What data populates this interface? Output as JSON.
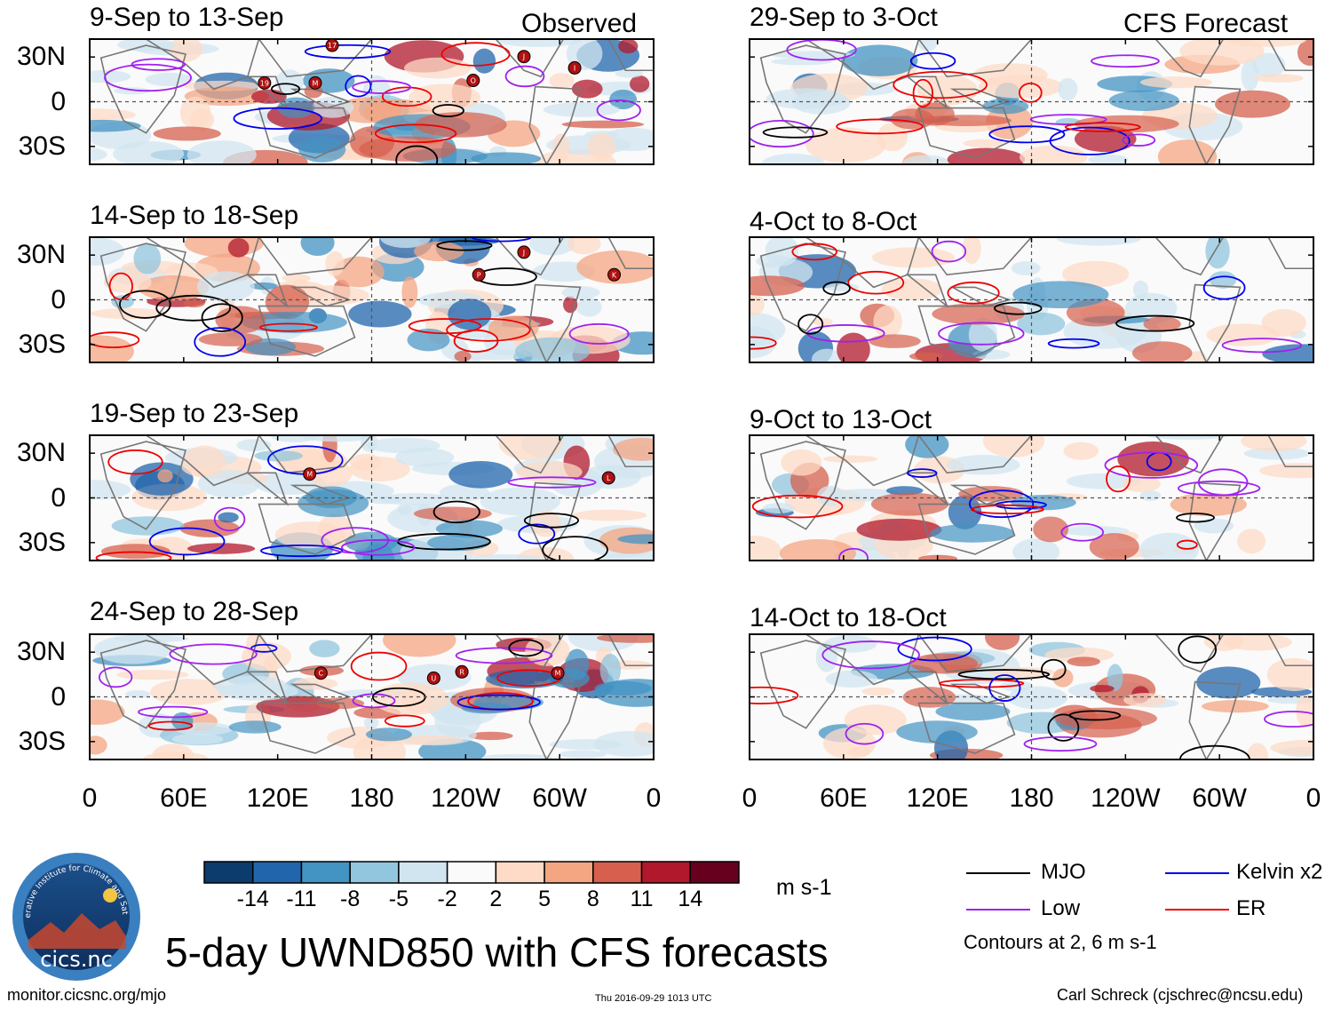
{
  "title": "5-day UWND850 with CFS forecasts",
  "left_column_label": "Observed",
  "right_column_label": "CFS Forecast",
  "panels_left": [
    {
      "title": "9-Sep to 13-Sep",
      "storms": [
        "17",
        "19",
        "M",
        "O",
        "J",
        "I"
      ]
    },
    {
      "title": "14-Sep to 18-Sep",
      "storms": [
        "J",
        "P",
        "K"
      ]
    },
    {
      "title": "19-Sep to 23-Sep",
      "storms": [
        "M",
        "L"
      ]
    },
    {
      "title": "24-Sep to 28-Sep",
      "storms": [
        "C",
        "U",
        "R",
        "M"
      ]
    }
  ],
  "panels_right": [
    {
      "title": "29-Sep to 3-Oct"
    },
    {
      "title": "4-Oct to 8-Oct"
    },
    {
      "title": "9-Oct to 13-Oct"
    },
    {
      "title": "14-Oct to 18-Oct"
    }
  ],
  "lat_labels": [
    "30N",
    "0",
    "30S"
  ],
  "lon_labels": [
    "0",
    "60E",
    "120E",
    "180",
    "120W",
    "60W",
    "0"
  ],
  "colorbar": {
    "ticks": [
      "-14",
      "-11",
      "-8",
      "-5",
      "-2",
      "2",
      "5",
      "8",
      "11",
      "14"
    ],
    "colors": [
      "#0c3b6e",
      "#2166ac",
      "#4393c3",
      "#92c5de",
      "#d1e5f0",
      "#fafafa",
      "#fddbc7",
      "#f4a582",
      "#d6604d",
      "#b2182b",
      "#67001f"
    ],
    "units": "m s-1"
  },
  "legend": {
    "items": [
      {
        "label": "MJO",
        "color": "#000000"
      },
      {
        "label": "Kelvin x2",
        "color": "#0000ee"
      },
      {
        "label": "Low",
        "color": "#a020f0"
      },
      {
        "label": "ER",
        "color": "#ee0000"
      }
    ],
    "contours": "Contours at 2, 6 m s-1"
  },
  "logo_text": "cics.nc",
  "logo_ring": "Cooperative Institute for Climate and Satellites",
  "footer": {
    "url": "monitor.cicsnc.org/mjo",
    "timestamp": "Thu 2016-09-29 1013 UTC",
    "author": "Carl Schreck (cjschrec@ncsu.edu)"
  }
}
